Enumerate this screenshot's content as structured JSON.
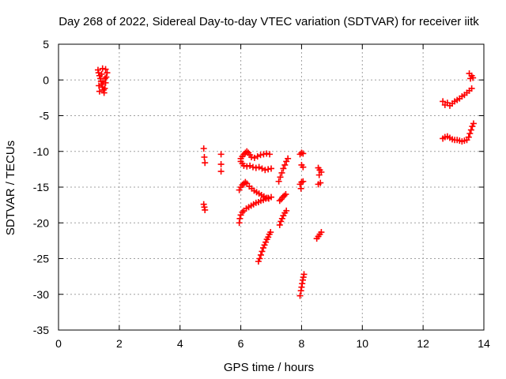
{
  "chart_data": {
    "type": "scatter",
    "title": "Day 268 of 2022, Sidereal Day-to-day VTEC variation (SDTVAR) for receiver iitk",
    "xlabel": "GPS time / hours",
    "ylabel": "SDTVAR / TECUs",
    "xlim": [
      0,
      14
    ],
    "ylim": [
      -35,
      5
    ],
    "xticks": [
      "0",
      "2",
      "4",
      "6",
      "8",
      "10",
      "12",
      "14"
    ],
    "yticks": [
      "5",
      "0",
      "-5",
      "-10",
      "-15",
      "-20",
      "-25",
      "-30",
      "-35"
    ],
    "grid": true,
    "marker": "+",
    "color": "#ff0000",
    "series": [
      {
        "points": [
          [
            1.3,
            1.4
          ],
          [
            1.32,
            1.0
          ],
          [
            1.35,
            0.6
          ],
          [
            1.38,
            0.2
          ],
          [
            1.4,
            -0.2
          ],
          [
            1.43,
            -0.6
          ],
          [
            1.45,
            -1.0
          ],
          [
            1.48,
            -1.4
          ],
          [
            1.5,
            -1.8
          ],
          [
            1.52,
            -1.2
          ],
          [
            1.55,
            -0.4
          ],
          [
            1.57,
            0.4
          ],
          [
            1.6,
            1.0
          ],
          [
            1.55,
            1.5
          ],
          [
            1.45,
            1.6
          ],
          [
            1.35,
            -1.6
          ],
          [
            1.33,
            -0.8
          ],
          [
            1.42,
            0.8
          ],
          [
            1.47,
            -0.2
          ],
          [
            1.53,
            0.2
          ],
          [
            4.78,
            -9.6
          ],
          [
            4.8,
            -10.8
          ],
          [
            4.82,
            -11.6
          ],
          [
            4.78,
            -17.4
          ],
          [
            4.8,
            -17.8
          ],
          [
            4.82,
            -18.2
          ],
          [
            5.35,
            -10.4
          ],
          [
            5.35,
            -11.8
          ],
          [
            5.35,
            -12.8
          ],
          [
            6.0,
            -11.0
          ],
          [
            6.05,
            -10.7
          ],
          [
            6.1,
            -10.4
          ],
          [
            6.15,
            -10.2
          ],
          [
            6.2,
            -10.0
          ],
          [
            6.25,
            -10.2
          ],
          [
            6.3,
            -10.5
          ],
          [
            6.35,
            -10.8
          ],
          [
            6.45,
            -10.9
          ],
          [
            6.55,
            -10.7
          ],
          [
            6.65,
            -10.5
          ],
          [
            6.75,
            -10.4
          ],
          [
            6.85,
            -10.3
          ],
          [
            6.95,
            -10.4
          ],
          [
            6.0,
            -11.4
          ],
          [
            6.05,
            -11.7
          ],
          [
            6.1,
            -12.0
          ],
          [
            6.2,
            -12.1
          ],
          [
            6.3,
            -12.0
          ],
          [
            6.4,
            -12.2
          ],
          [
            6.5,
            -12.3
          ],
          [
            6.6,
            -12.2
          ],
          [
            6.7,
            -12.4
          ],
          [
            6.8,
            -12.6
          ],
          [
            6.9,
            -12.5
          ],
          [
            7.0,
            -12.4
          ],
          [
            5.95,
            -15.4
          ],
          [
            6.0,
            -15.0
          ],
          [
            6.05,
            -14.7
          ],
          [
            6.1,
            -14.5
          ],
          [
            6.15,
            -14.3
          ],
          [
            6.2,
            -14.5
          ],
          [
            6.28,
            -14.9
          ],
          [
            6.36,
            -15.2
          ],
          [
            6.44,
            -15.5
          ],
          [
            6.52,
            -15.7
          ],
          [
            6.6,
            -15.9
          ],
          [
            6.68,
            -16.1
          ],
          [
            6.76,
            -16.3
          ],
          [
            6.84,
            -16.5
          ],
          [
            6.92,
            -16.6
          ],
          [
            7.0,
            -16.4
          ],
          [
            5.95,
            -20.0
          ],
          [
            5.97,
            -19.4
          ],
          [
            6.0,
            -18.9
          ],
          [
            6.05,
            -18.5
          ],
          [
            6.1,
            -18.3
          ],
          [
            6.18,
            -18.0
          ],
          [
            6.26,
            -17.8
          ],
          [
            6.34,
            -17.6
          ],
          [
            6.42,
            -17.4
          ],
          [
            6.5,
            -17.2
          ],
          [
            6.58,
            -17.1
          ],
          [
            6.66,
            -16.9
          ],
          [
            6.74,
            -16.8
          ],
          [
            6.82,
            -16.6
          ],
          [
            6.9,
            -16.5
          ],
          [
            6.58,
            -25.4
          ],
          [
            6.62,
            -25.0
          ],
          [
            6.66,
            -24.5
          ],
          [
            6.7,
            -24.0
          ],
          [
            6.74,
            -23.5
          ],
          [
            6.78,
            -23.1
          ],
          [
            6.82,
            -22.7
          ],
          [
            6.86,
            -22.3
          ],
          [
            6.9,
            -22.0
          ],
          [
            6.94,
            -21.6
          ],
          [
            6.98,
            -21.3
          ],
          [
            7.25,
            -14.2
          ],
          [
            7.3,
            -13.6
          ],
          [
            7.35,
            -13.0
          ],
          [
            7.4,
            -12.4
          ],
          [
            7.45,
            -11.9
          ],
          [
            7.5,
            -11.4
          ],
          [
            7.55,
            -11.0
          ],
          [
            7.28,
            -16.9
          ],
          [
            7.33,
            -16.7
          ],
          [
            7.38,
            -16.4
          ],
          [
            7.43,
            -16.2
          ],
          [
            7.48,
            -16.0
          ],
          [
            7.28,
            -20.3
          ],
          [
            7.32,
            -19.8
          ],
          [
            7.36,
            -19.4
          ],
          [
            7.4,
            -19.0
          ],
          [
            7.45,
            -18.6
          ],
          [
            7.5,
            -18.3
          ],
          [
            7.95,
            -10.4
          ],
          [
            8.0,
            -10.2
          ],
          [
            8.05,
            -10.3
          ],
          [
            8.0,
            -11.9
          ],
          [
            8.05,
            -12.2
          ],
          [
            7.95,
            -14.6
          ],
          [
            8.0,
            -14.3
          ],
          [
            8.05,
            -14.2
          ],
          [
            7.98,
            -15.2
          ],
          [
            7.95,
            -30.2
          ],
          [
            7.98,
            -29.5
          ],
          [
            8.0,
            -29.0
          ],
          [
            8.02,
            -28.5
          ],
          [
            8.04,
            -28.0
          ],
          [
            8.06,
            -27.6
          ],
          [
            8.08,
            -27.2
          ],
          [
            8.55,
            -12.3
          ],
          [
            8.6,
            -12.6
          ],
          [
            8.65,
            -12.9
          ],
          [
            8.58,
            -13.3
          ],
          [
            8.55,
            -14.6
          ],
          [
            8.62,
            -14.4
          ],
          [
            8.5,
            -22.2
          ],
          [
            8.55,
            -21.9
          ],
          [
            8.6,
            -21.6
          ],
          [
            8.65,
            -21.3
          ],
          [
            12.65,
            -3.0
          ],
          [
            12.72,
            -3.5
          ],
          [
            12.8,
            -3.2
          ],
          [
            12.88,
            -3.6
          ],
          [
            12.96,
            -3.3
          ],
          [
            13.04,
            -3.0
          ],
          [
            13.12,
            -2.8
          ],
          [
            13.2,
            -2.6
          ],
          [
            13.28,
            -2.3
          ],
          [
            13.36,
            -2.1
          ],
          [
            13.44,
            -1.8
          ],
          [
            13.52,
            -1.5
          ],
          [
            13.6,
            -1.2
          ],
          [
            13.56,
            0.2
          ],
          [
            13.6,
            0.6
          ],
          [
            13.64,
            0.3
          ],
          [
            13.52,
            0.9
          ],
          [
            12.65,
            -8.2
          ],
          [
            12.72,
            -8.0
          ],
          [
            12.8,
            -7.9
          ],
          [
            12.88,
            -8.1
          ],
          [
            12.96,
            -8.3
          ],
          [
            13.04,
            -8.4
          ],
          [
            13.12,
            -8.4
          ],
          [
            13.2,
            -8.5
          ],
          [
            13.28,
            -8.6
          ],
          [
            13.36,
            -8.5
          ],
          [
            13.44,
            -8.4
          ],
          [
            13.5,
            -8.0
          ],
          [
            13.54,
            -7.5
          ],
          [
            13.58,
            -7.0
          ],
          [
            13.62,
            -6.5
          ],
          [
            13.66,
            -6.1
          ]
        ]
      }
    ]
  }
}
